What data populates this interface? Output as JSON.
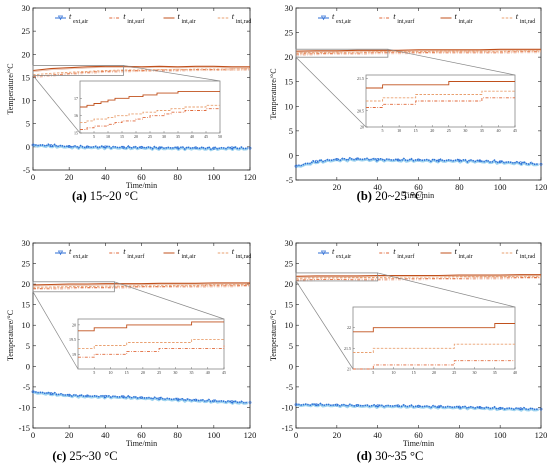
{
  "figure": {
    "colors": {
      "ext_air": "#2f6fd6",
      "ext_air_fill": "#9fd4f0",
      "int_surf": "#e06a3c",
      "int_air": "#c0501c",
      "int_rad": "#e9a070",
      "axis": "#222222",
      "zoom_box": "#888888"
    }
  },
  "legend": [
    {
      "main": "t",
      "sub": "ext,air",
      "series": "ext_air",
      "style": "marker-line"
    },
    {
      "main": "t",
      "sub": "int,surf",
      "series": "int_surf",
      "style": "dash-dot"
    },
    {
      "main": "t",
      "sub": "int,air",
      "series": "int_air",
      "style": "solid"
    },
    {
      "main": "t",
      "sub": "int,rad",
      "series": "int_rad",
      "style": "dashed"
    }
  ],
  "chart_data": [
    {
      "type": "line",
      "caption": {
        "label": "(a)",
        "text": " 15~20 °C"
      },
      "xlabel": "Time/min",
      "ylabel": "Temperature/°C",
      "xlim": [
        0,
        120
      ],
      "ylim": [
        -5,
        30
      ],
      "xticks": [
        0,
        20,
        40,
        60,
        80,
        100,
        120
      ],
      "yticks": [
        -5,
        0,
        5,
        10,
        15,
        20,
        25,
        30
      ],
      "series": [
        {
          "key": "ext_air",
          "x": [
            0,
            10,
            20,
            30,
            40,
            50,
            60,
            70,
            80,
            90,
            100,
            110,
            120
          ],
          "y": [
            0.4,
            0.3,
            0.1,
            0.0,
            0.0,
            -0.1,
            -0.1,
            -0.2,
            -0.2,
            -0.2,
            -0.3,
            -0.2,
            -0.3
          ]
        },
        {
          "key": "int_surf",
          "x": [
            0,
            10,
            20,
            30,
            40,
            50,
            60,
            70,
            80,
            90,
            100,
            110,
            120
          ],
          "y": [
            15.2,
            15.5,
            15.8,
            16.1,
            16.3,
            16.4,
            16.5,
            16.6,
            16.6,
            16.7,
            16.7,
            16.8,
            16.8
          ]
        },
        {
          "key": "int_air",
          "x": [
            0,
            10,
            20,
            30,
            40,
            50,
            60,
            70,
            80,
            90,
            100,
            110,
            120
          ],
          "y": [
            16.5,
            16.9,
            17.1,
            17.3,
            17.4,
            17.4,
            17.3,
            17.4,
            17.3,
            17.4,
            17.4,
            17.3,
            17.3
          ]
        },
        {
          "key": "int_rad",
          "x": [
            0,
            10,
            20,
            30,
            40,
            50,
            60,
            70,
            80,
            90,
            100,
            110,
            120
          ],
          "y": [
            15.6,
            15.9,
            16.1,
            16.3,
            16.5,
            16.6,
            16.6,
            16.7,
            16.7,
            16.8,
            16.8,
            16.8,
            16.9
          ]
        }
      ],
      "zoom": {
        "x_range": [
          0,
          50
        ],
        "y_range": [
          15,
          18
        ],
        "xticks": [
          5,
          10,
          15,
          20,
          25,
          30,
          35,
          40,
          45,
          50
        ],
        "yticks": [
          15,
          16,
          17
        ],
        "ytick_labels": [
          "15",
          "16",
          "17"
        ]
      }
    },
    {
      "type": "line",
      "caption": {
        "label": "(b)",
        "text": " 20~25 °C"
      },
      "xlabel": "Time/min",
      "ylabel": "Temperature/°C",
      "xlim": [
        0,
        120
      ],
      "ylim": [
        -5,
        30
      ],
      "xticks": [
        20,
        40,
        60,
        80,
        100,
        120
      ],
      "yticks": [
        -5,
        0,
        5,
        10,
        15,
        20,
        25,
        30
      ],
      "series": [
        {
          "key": "ext_air",
          "x": [
            0,
            10,
            20,
            30,
            40,
            50,
            60,
            70,
            80,
            90,
            100,
            110,
            120
          ],
          "y": [
            -2.2,
            -1.2,
            -0.8,
            -0.7,
            -0.8,
            -0.9,
            -0.9,
            -1.0,
            -1.0,
            -1.1,
            -1.3,
            -1.5,
            -1.8
          ]
        },
        {
          "key": "int_surf",
          "x": [
            0,
            10,
            20,
            30,
            40,
            50,
            60,
            70,
            80,
            90,
            100,
            110,
            120
          ],
          "y": [
            20.6,
            20.7,
            20.8,
            20.8,
            20.9,
            20.9,
            20.9,
            21.0,
            21.0,
            21.0,
            21.0,
            21.1,
            21.1
          ]
        },
        {
          "key": "int_air",
          "x": [
            0,
            10,
            20,
            30,
            40,
            50,
            60,
            70,
            80,
            90,
            100,
            110,
            120
          ],
          "y": [
            21.2,
            21.3,
            21.3,
            21.4,
            21.4,
            21.4,
            21.5,
            21.5,
            21.5,
            21.5,
            21.6,
            21.6,
            21.6
          ]
        },
        {
          "key": "int_rad",
          "x": [
            0,
            10,
            20,
            30,
            40,
            50,
            60,
            70,
            80,
            90,
            100,
            110,
            120
          ],
          "y": [
            20.8,
            20.9,
            21.0,
            21.0,
            21.1,
            21.1,
            21.1,
            21.2,
            21.2,
            21.2,
            21.2,
            21.3,
            21.3
          ]
        }
      ],
      "zoom": {
        "x_range": [
          0,
          45
        ],
        "y_range": [
          20,
          21.6
        ],
        "xticks": [
          5,
          10,
          15,
          20,
          25,
          30,
          35,
          40,
          45
        ],
        "yticks": [
          20,
          20.5,
          21.5
        ],
        "ytick_labels": [
          "20",
          "20.5",
          "21.5"
        ]
      }
    },
    {
      "type": "line",
      "caption": {
        "label": "(c)",
        "text": " 25~30 °C"
      },
      "xlabel": "Time/min",
      "ylabel": "Temperature/°C",
      "xlim": [
        0,
        120
      ],
      "ylim": [
        -15,
        30
      ],
      "xticks": [
        0,
        20,
        40,
        60,
        80,
        100,
        120
      ],
      "yticks": [
        -15,
        -10,
        -5,
        0,
        5,
        10,
        15,
        20,
        25,
        30
      ],
      "series": [
        {
          "key": "ext_air",
          "x": [
            0,
            10,
            20,
            30,
            40,
            50,
            60,
            70,
            80,
            90,
            100,
            110,
            120
          ],
          "y": [
            -6.2,
            -6.6,
            -7.0,
            -7.2,
            -7.3,
            -7.4,
            -7.6,
            -7.8,
            -8.0,
            -8.2,
            -8.4,
            -8.6,
            -8.8
          ]
        },
        {
          "key": "int_surf",
          "x": [
            0,
            10,
            20,
            30,
            40,
            50,
            60,
            70,
            80,
            90,
            100,
            110,
            120
          ],
          "y": [
            18.9,
            19.0,
            19.1,
            19.2,
            19.2,
            19.3,
            19.4,
            19.4,
            19.5,
            19.5,
            19.6,
            19.6,
            19.7
          ]
        },
        {
          "key": "int_air",
          "x": [
            0,
            10,
            20,
            30,
            40,
            50,
            60,
            70,
            80,
            90,
            100,
            110,
            120
          ],
          "y": [
            19.8,
            19.9,
            20.0,
            20.0,
            20.1,
            20.1,
            20.1,
            20.2,
            20.2,
            20.2,
            20.3,
            20.3,
            20.3
          ]
        },
        {
          "key": "int_rad",
          "x": [
            0,
            10,
            20,
            30,
            40,
            50,
            60,
            70,
            80,
            90,
            100,
            110,
            120
          ],
          "y": [
            19.2,
            19.3,
            19.4,
            19.4,
            19.5,
            19.5,
            19.6,
            19.6,
            19.7,
            19.7,
            19.8,
            19.8,
            19.9
          ]
        }
      ],
      "zoom": {
        "x_range": [
          0,
          45
        ],
        "y_range": [
          18.5,
          20.2
        ],
        "xticks": [
          5,
          10,
          15,
          20,
          25,
          30,
          35,
          40,
          45
        ],
        "yticks": [
          19,
          19.5,
          20
        ],
        "ytick_labels": [
          "19",
          "19.5",
          "20"
        ]
      }
    },
    {
      "type": "line",
      "caption": {
        "label": "(d)",
        "text": " 30~35 °C"
      },
      "xlabel": "Time/min",
      "ylabel": "Temperature/°C",
      "xlim": [
        0,
        120
      ],
      "ylim": [
        -15,
        30
      ],
      "xticks": [
        0,
        20,
        40,
        60,
        80,
        100,
        120
      ],
      "yticks": [
        -15,
        -10,
        -5,
        0,
        5,
        10,
        15,
        20,
        25,
        30
      ],
      "series": [
        {
          "key": "ext_air",
          "x": [
            0,
            10,
            20,
            30,
            40,
            50,
            60,
            70,
            80,
            90,
            100,
            110,
            120
          ],
          "y": [
            -9.3,
            -9.3,
            -9.4,
            -9.5,
            -9.6,
            -9.6,
            -9.7,
            -9.8,
            -9.9,
            -10.0,
            -10.2,
            -10.3,
            -10.4
          ]
        },
        {
          "key": "int_surf",
          "x": [
            0,
            10,
            20,
            30,
            40,
            50,
            60,
            70,
            80,
            90,
            100,
            110,
            120
          ],
          "y": [
            21.0,
            21.1,
            21.1,
            21.2,
            21.2,
            21.3,
            21.3,
            21.4,
            21.4,
            21.5,
            21.5,
            21.6,
            21.6
          ]
        },
        {
          "key": "int_air",
          "x": [
            0,
            10,
            20,
            30,
            40,
            50,
            60,
            70,
            80,
            90,
            100,
            110,
            120
          ],
          "y": [
            21.9,
            22.0,
            22.0,
            22.0,
            22.1,
            22.1,
            22.1,
            22.1,
            22.2,
            22.2,
            22.2,
            22.3,
            22.3
          ]
        },
        {
          "key": "int_rad",
          "x": [
            0,
            10,
            20,
            30,
            40,
            50,
            60,
            70,
            80,
            90,
            100,
            110,
            120
          ],
          "y": [
            21.4,
            21.5,
            21.5,
            21.6,
            21.6,
            21.7,
            21.7,
            21.7,
            21.8,
            21.8,
            21.8,
            21.9,
            21.9
          ]
        }
      ],
      "zoom": {
        "x_range": [
          0,
          40
        ],
        "y_range": [
          21,
          22.5
        ],
        "xticks": [
          5,
          10,
          15,
          20,
          25,
          30,
          35,
          40
        ],
        "yticks": [
          21,
          21.5,
          22
        ],
        "ytick_labels": [
          "21",
          "21.5",
          "22"
        ]
      }
    }
  ]
}
